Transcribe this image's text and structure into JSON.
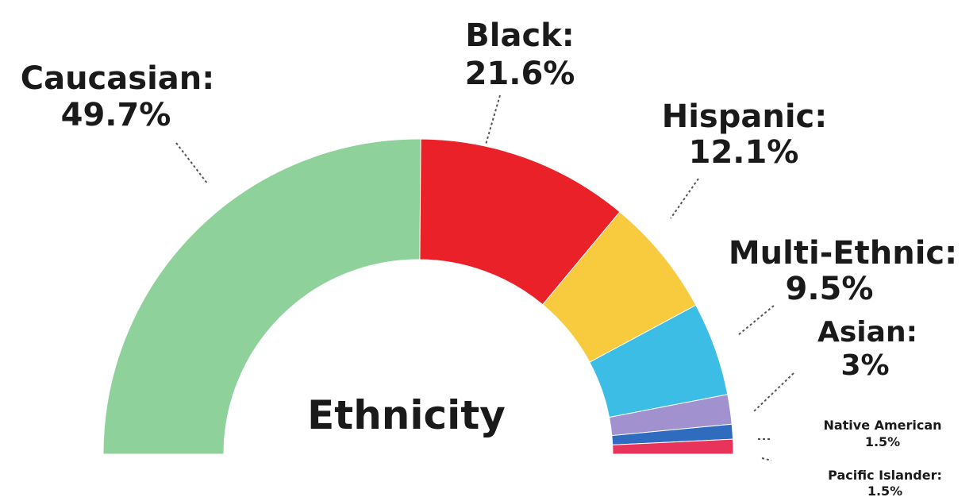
{
  "chart_data": {
    "type": "pie",
    "variant": "semicircle-donut",
    "center_title": "Ethnicity",
    "slices": [
      {
        "label": "Caucasian:",
        "value_text": "49.7%",
        "value": 49.7,
        "color": "#8fd19a"
      },
      {
        "label": "Black:",
        "value_text": "21.6%",
        "value": 21.6,
        "color": "#ea2128"
      },
      {
        "label": "Hispanic:",
        "value_text": "12.1%",
        "value": 12.1,
        "color": "#f8cb3f"
      },
      {
        "label": "Multi-Ethnic:",
        "value_text": "9.5%",
        "value": 9.5,
        "color": "#3bbde6"
      },
      {
        "label": "Asian:",
        "value_text": "3%",
        "value": 3,
        "color": "#a191cf"
      },
      {
        "label": "Native American",
        "value_text": "1.5%",
        "value": 1.5,
        "color": "#2f6cc0"
      },
      {
        "label": "Pacific Islander:",
        "value_text": "1.5%",
        "value": 1.5,
        "color": "#e8335a"
      }
    ]
  }
}
